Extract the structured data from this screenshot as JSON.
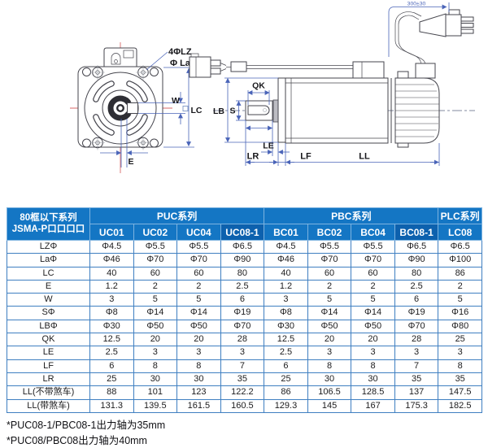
{
  "diagram": {
    "front": {
      "bolt_holes_label": "4ΦLZ",
      "bolt_circle_label": "Φ La",
      "keyway_width_label": "W",
      "frame_size_label": "LC",
      "offset_label": "E"
    },
    "side": {
      "key_length_label": "QK",
      "shaft_label": "S",
      "pilot_label": "LB",
      "le_label": "LE",
      "lr_label": "LR",
      "lf_label": "LF",
      "ll_label": "LL",
      "cable_length_label": "300±30"
    }
  },
  "table": {
    "corner_header": [
      "80框以下系列",
      "JSMA-P口口口口"
    ],
    "groups": [
      {
        "label": "PUC系列",
        "span": 4
      },
      {
        "label": "PBC系列",
        "span": 4
      },
      {
        "label": "PLC系列",
        "span": 1
      }
    ],
    "columns": [
      "UC01",
      "UC02",
      "UC04",
      "UC08-1",
      "BC01",
      "BC02",
      "BC04",
      "BC08-1",
      "LC08"
    ],
    "highlight_columns": [
      "UC08-1",
      "BC08-1"
    ],
    "rows": [
      {
        "label": "LZΦ",
        "values": [
          "Φ4.5",
          "Φ5.5",
          "Φ5.5",
          "Φ6.5",
          "Φ4.5",
          "Φ5.5",
          "Φ5.5",
          "Φ6.5",
          "Φ6.5"
        ]
      },
      {
        "label": "LaΦ",
        "values": [
          "Φ46",
          "Φ70",
          "Φ70",
          "Φ90",
          "Φ46",
          "Φ70",
          "Φ70",
          "Φ90",
          "Φ100"
        ]
      },
      {
        "label": "LC",
        "values": [
          "40",
          "60",
          "60",
          "80",
          "40",
          "60",
          "60",
          "80",
          "86"
        ]
      },
      {
        "label": "E",
        "values": [
          "1.2",
          "2",
          "2",
          "2.5",
          "1.2",
          "2",
          "2",
          "2.5",
          "2"
        ]
      },
      {
        "label": "W",
        "values": [
          "3",
          "5",
          "5",
          "6",
          "3",
          "5",
          "5",
          "6",
          "5"
        ]
      },
      {
        "label": "SΦ",
        "values": [
          "Φ8",
          "Φ14",
          "Φ14",
          "Φ19",
          "Φ8",
          "Φ14",
          "Φ14",
          "Φ19",
          "Φ16"
        ]
      },
      {
        "label": "LBΦ",
        "values": [
          "Φ30",
          "Φ50",
          "Φ50",
          "Φ70",
          "Φ30",
          "Φ50",
          "Φ50",
          "Φ70",
          "Φ80"
        ]
      },
      {
        "label": "QK",
        "values": [
          "12.5",
          "20",
          "20",
          "28",
          "12.5",
          "20",
          "20",
          "28",
          "25"
        ]
      },
      {
        "label": "LE",
        "values": [
          "2.5",
          "3",
          "3",
          "3",
          "2.5",
          "3",
          "3",
          "3",
          "3"
        ]
      },
      {
        "label": "LF",
        "values": [
          "6",
          "8",
          "8",
          "7",
          "6",
          "8",
          "8",
          "7",
          "8"
        ]
      },
      {
        "label": "LR",
        "values": [
          "25",
          "30",
          "30",
          "35",
          "25",
          "30",
          "30",
          "35",
          "35"
        ]
      },
      {
        "label": "LL(不带煞车)",
        "values": [
          "88",
          "101",
          "123",
          "122.2",
          "86",
          "106.5",
          "128.5",
          "137",
          "147.5"
        ]
      },
      {
        "label": "LL(带煞车)",
        "values": [
          "131.3",
          "139.5",
          "161.5",
          "160.5",
          "129.3",
          "145",
          "167",
          "175.3",
          "182.5"
        ]
      }
    ]
  },
  "notes": [
    "*PUC08-1/PBC08-1出力轴为35mm",
    "*PUC08/PBC08出力轴为40mm"
  ],
  "colors": {
    "header_blue": "#1476c4",
    "header_blue_dark": "#0d61ae",
    "border_blue": "#3f7fc1",
    "dimension_blue": "#4a64b8",
    "centerline_red": "#d96a6a"
  }
}
